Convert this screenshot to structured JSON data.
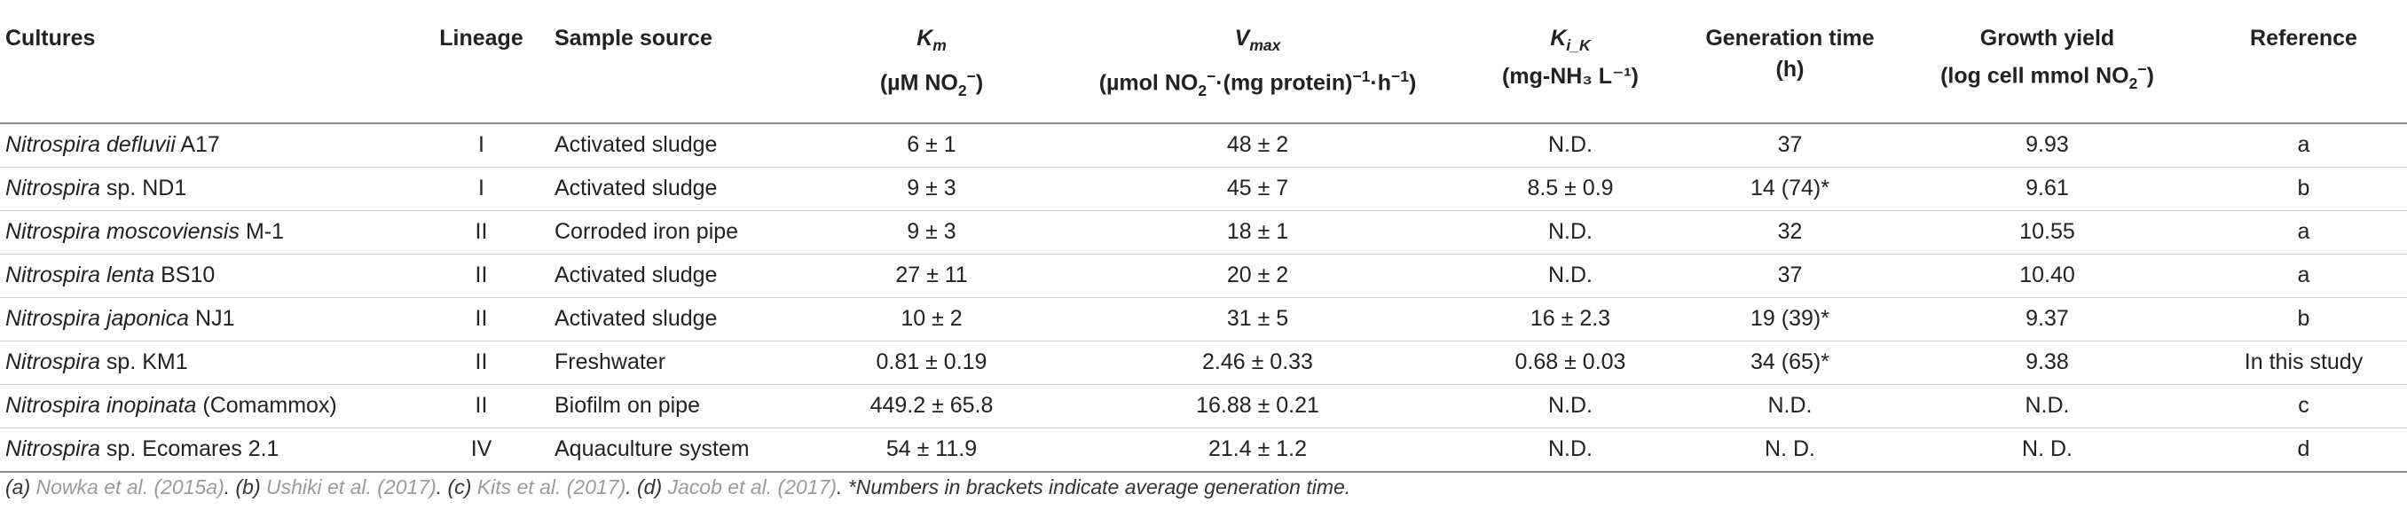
{
  "table": {
    "headers": [
      {
        "id": "cultures",
        "line1": "Cultures",
        "line2": ""
      },
      {
        "id": "lineage",
        "line1": "Lineage",
        "line2": ""
      },
      {
        "id": "sample_source",
        "line1": "Sample source",
        "line2": ""
      },
      {
        "id": "km",
        "symbol": "K",
        "sub": "m",
        "line2_a": "(µM NO",
        "line2_sub": "2",
        "line2_sup": "−",
        "line2_b": ")"
      },
      {
        "id": "vmax",
        "symbol": "V",
        "sub": "max",
        "line2_a": "(µmol NO",
        "line2_sub": "2",
        "line2_sup": "−",
        "line2_b": "·(mg protein)",
        "line2_sup2": "−1",
        "line2_c": "·h",
        "line2_sup3": "−1",
        "line2_d": ")"
      },
      {
        "id": "kik",
        "symbol": "K",
        "sub": "i_K",
        "line2": "(mg-NH₃ L⁻¹)"
      },
      {
        "id": "gen_time",
        "line1": "Generation time",
        "line2": "(h)"
      },
      {
        "id": "growth_yield",
        "line1": "Growth yield",
        "line2_a": "(log cell mmol NO",
        "line2_sub": "2",
        "line2_sup": "−",
        "line2_b": ")"
      },
      {
        "id": "reference",
        "line1": "Reference",
        "line2": ""
      }
    ],
    "rows": [
      {
        "genus": "Nitrospira",
        "species": "defluvii",
        "strain": " A17",
        "lineage": "I",
        "source": "Activated sludge",
        "km": "6 ± 1",
        "vmax": "48 ± 2",
        "kik": "N.D.",
        "gen": "37",
        "yield": "9.93",
        "ref": "a"
      },
      {
        "genus": "Nitrospira",
        "species": "",
        "strain": " sp. ND1",
        "lineage": "I",
        "source": "Activated sludge",
        "km": "9 ± 3",
        "vmax": "45 ± 7",
        "kik": "8.5 ± 0.9",
        "gen": "14 (74)*",
        "yield": "9.61",
        "ref": "b"
      },
      {
        "genus": "Nitrospira",
        "species": "moscoviensis",
        "strain": " M-1",
        "lineage": "II",
        "source": "Corroded iron pipe",
        "km": "9 ± 3",
        "vmax": "18 ± 1",
        "kik": "N.D.",
        "gen": "32",
        "yield": "10.55",
        "ref": "a"
      },
      {
        "genus": "Nitrospira",
        "species": "lenta",
        "strain": " BS10",
        "lineage": "II",
        "source": "Activated sludge",
        "km": "27 ± 11",
        "vmax": "20 ± 2",
        "kik": "N.D.",
        "gen": "37",
        "yield": "10.40",
        "ref": "a"
      },
      {
        "genus": "Nitrospira",
        "species": "japonica",
        "strain": " NJ1",
        "lineage": "II",
        "source": "Activated sludge",
        "km": "10 ± 2",
        "vmax": "31 ± 5",
        "kik": "16 ± 2.3",
        "gen": "19 (39)*",
        "yield": "9.37",
        "ref": "b"
      },
      {
        "genus": "Nitrospira",
        "species": "",
        "strain": " sp. KM1",
        "lineage": "II",
        "source": "Freshwater",
        "km": "0.81 ± 0.19",
        "vmax": "2.46 ± 0.33",
        "kik": "0.68 ± 0.03",
        "gen": "34 (65)*",
        "yield": "9.38",
        "ref": "In this study"
      },
      {
        "genus": "Nitrospira",
        "species": "inopinata",
        "strain": " (Comammox)",
        "lineage": "II",
        "source": "Biofilm on pipe",
        "km": "449.2 ± 65.8",
        "vmax": "16.88 ± 0.21",
        "kik": "N.D.",
        "gen": "N.D.",
        "yield": "N.D.",
        "ref": "c"
      },
      {
        "genus": "Nitrospira",
        "species": "",
        "strain": " sp. Ecomares 2.1",
        "lineage": "IV",
        "source": "Aquaculture system",
        "km": "54 ± 11.9",
        "vmax": "21.4 ± 1.2",
        "kik": "N.D.",
        "gen": "N. D.",
        "yield": "N. D.",
        "ref": "d"
      }
    ]
  },
  "footnote": {
    "a_label": "(a) ",
    "a_ref": "Nowka et al. (2015a)",
    "b_label": ". (b) ",
    "b_ref": "Ushiki et al. (2017)",
    "c_label": ". (c) ",
    "c_ref": "Kits et al. (2017)",
    "d_label": ". (d) ",
    "d_ref": "Jacob et al. (2017)",
    "note": ". *Numbers in brackets indicate average generation time."
  },
  "colors": {
    "text": "#222222",
    "rule": "#8a8a8a",
    "row_rule": "#cfcfcf",
    "ref_link": "#9b9b9b"
  }
}
